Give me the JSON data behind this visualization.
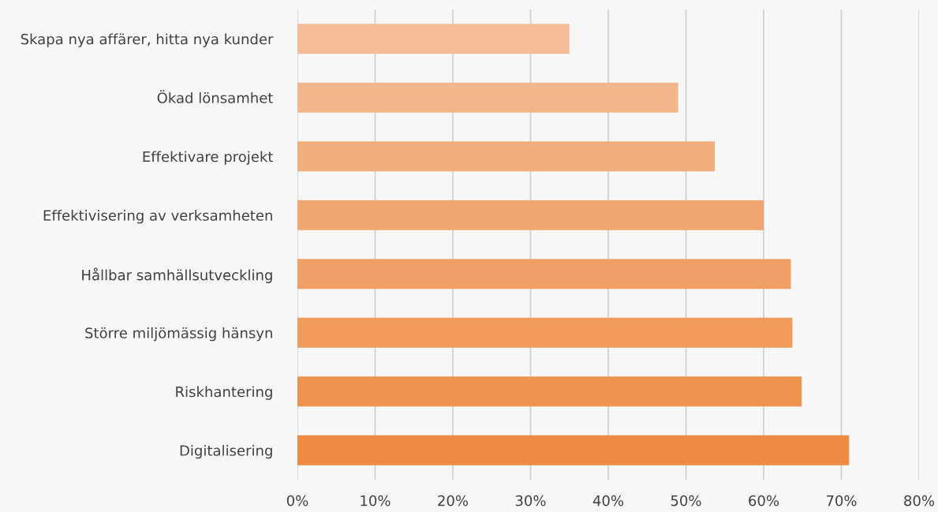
{
  "chart_data": {
    "type": "bar",
    "orientation": "horizontal",
    "categories": [
      "Skapa nya affärer, hitta nya kunder",
      "Ökad lönsamhet",
      "Effektivare projekt",
      "Effektivisering av verksamheten",
      "Hållbar samhällsutveckling",
      "Större miljömässig hänsyn",
      "Riskhantering",
      "Digitalisering"
    ],
    "values": [
      35,
      49,
      53.7,
      60,
      63.5,
      63.7,
      64.9,
      71
    ],
    "colors": [
      "#f4bd98",
      "#f3b58a",
      "#f2ad7e",
      "#f1a672",
      "#f0a066",
      "#f09a5c",
      "#ef9350",
      "#ee8a42"
    ],
    "xlim": [
      0,
      80
    ],
    "xticks": [
      {
        "value": 0,
        "label": "0%"
      },
      {
        "value": 10,
        "label": "10%"
      },
      {
        "value": 20,
        "label": "20%"
      },
      {
        "value": 30,
        "label": "30%"
      },
      {
        "value": 40,
        "label": "40%"
      },
      {
        "value": 50,
        "label": "50%"
      },
      {
        "value": 60,
        "label": "60%"
      },
      {
        "value": 70,
        "label": "70%"
      },
      {
        "value": 80,
        "label": "80%"
      }
    ],
    "grid": "x"
  }
}
